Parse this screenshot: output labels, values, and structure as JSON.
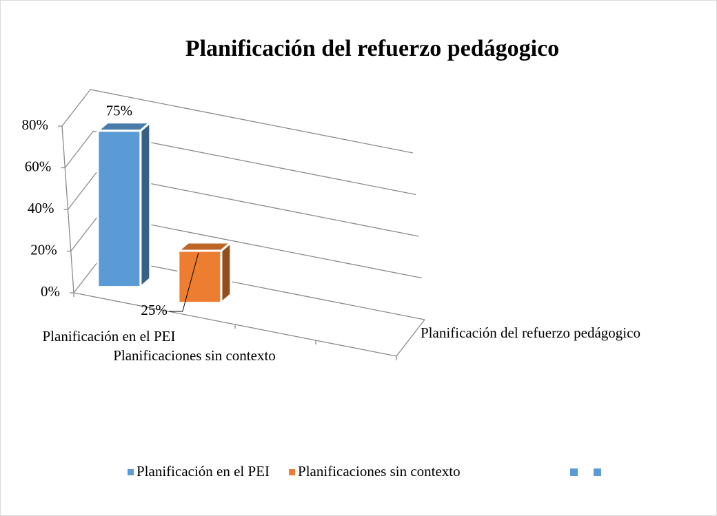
{
  "chart_data": {
    "type": "bar3d",
    "title": "Planificación del refuerzo pedágogico",
    "categories": [
      "Planificación en el PEI",
      "Planificaciones sin contexto"
    ],
    "values": [
      75,
      25
    ],
    "value_labels": [
      "75%",
      "25%"
    ],
    "colors": [
      "#5b9bd5",
      "#ed7d31"
    ],
    "depth_label": "Planificación del refuerzo pedágogico",
    "ylim": [
      0,
      80
    ],
    "yticks": [
      {
        "value": 0,
        "label": "0%"
      },
      {
        "value": 20,
        "label": "20%"
      },
      {
        "value": 40,
        "label": "40%"
      },
      {
        "value": 60,
        "label": "60%"
      },
      {
        "value": 80,
        "label": "80%"
      }
    ],
    "grid": true,
    "legend": "bottom"
  }
}
